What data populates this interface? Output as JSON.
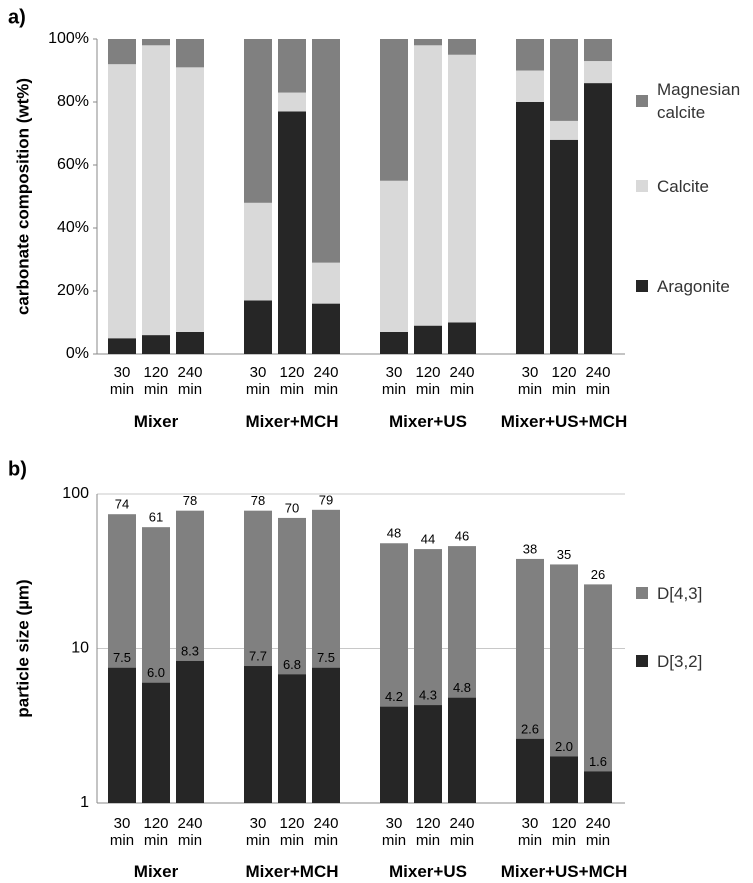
{
  "chart_data": [
    {
      "type": "bar",
      "stacked": true,
      "title": "a)",
      "ylabel": "carbonate composition (wt%)",
      "categories": [
        "30 min",
        "120 min",
        "240 min",
        "30 min",
        "120 min",
        "240 min",
        "30 min",
        "120 min",
        "240 min",
        "30 min",
        "120 min",
        "240 min"
      ],
      "group_labels": [
        "Mixer",
        "Mixer+MCH",
        "Mixer+US",
        "Mixer+US+MCH"
      ],
      "series": [
        {
          "name": "Aragonite",
          "color": "#262626",
          "values": [
            5,
            6,
            7,
            17,
            77,
            16,
            7,
            9,
            10,
            80,
            68,
            86
          ]
        },
        {
          "name": "Calcite",
          "color": "#d9d9d9",
          "values": [
            87,
            92,
            84,
            31,
            6,
            13,
            48,
            89,
            85,
            10,
            6,
            7
          ]
        },
        {
          "name": "Magnesian calcite",
          "color": "#808080",
          "values": [
            8,
            2,
            9,
            52,
            17,
            71,
            45,
            2,
            5,
            10,
            26,
            7
          ]
        }
      ],
      "ylim": [
        0,
        100
      ],
      "yticks": [
        {
          "value": 0,
          "label": "0%"
        },
        {
          "value": 20,
          "label": "20%"
        },
        {
          "value": 40,
          "label": "40%"
        },
        {
          "value": 60,
          "label": "60%"
        },
        {
          "value": 80,
          "label": "80%"
        },
        {
          "value": 100,
          "label": "100%"
        }
      ],
      "grid": false,
      "legend": "right"
    },
    {
      "type": "bar",
      "stacked": false,
      "log": true,
      "title": "b)",
      "ylabel": "particle size (µm)",
      "categories": [
        "30 min",
        "120 min",
        "240 min",
        "30 min",
        "120 min",
        "240 min",
        "30 min",
        "120 min",
        "240 min",
        "30 min",
        "120 min",
        "240 min"
      ],
      "group_labels": [
        "Mixer",
        "Mixer+MCH",
        "Mixer+US",
        "Mixer+US+MCH"
      ],
      "series": [
        {
          "name": "D[4,3]",
          "color": "#808080",
          "values": [
            74,
            61,
            78,
            78,
            70,
            79,
            48,
            44,
            46,
            38,
            35,
            26
          ]
        },
        {
          "name": "D[3,2]",
          "color": "#262626",
          "values": [
            7.5,
            6.0,
            8.3,
            7.7,
            6.8,
            7.5,
            4.2,
            4.3,
            4.8,
            2.6,
            2.0,
            1.6
          ],
          "value_labels": [
            "7.5",
            "6.0",
            "8.3",
            "7.7",
            "6.8",
            "7.5",
            "4.2",
            "4.3",
            "4.8",
            "2.6",
            "2.0",
            "1.6"
          ]
        }
      ],
      "ylim": [
        1,
        100
      ],
      "yticks": [
        1,
        10,
        100
      ],
      "grid": true,
      "legend": "right"
    }
  ]
}
